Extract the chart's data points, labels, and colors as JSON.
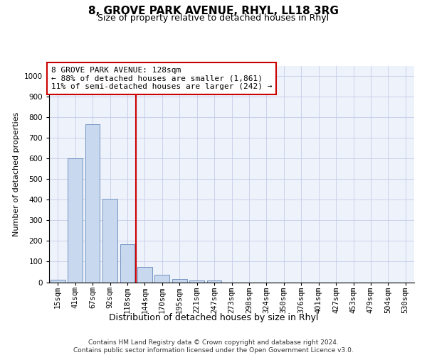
{
  "title1": "8, GROVE PARK AVENUE, RHYL, LL18 3RG",
  "title2": "Size of property relative to detached houses in Rhyl",
  "xlabel": "Distribution of detached houses by size in Rhyl",
  "ylabel": "Number of detached properties",
  "footnote": "Contains HM Land Registry data © Crown copyright and database right 2024.\nContains public sector information licensed under the Open Government Licence v3.0.",
  "categories": [
    "15sqm",
    "41sqm",
    "67sqm",
    "92sqm",
    "118sqm",
    "144sqm",
    "170sqm",
    "195sqm",
    "221sqm",
    "247sqm",
    "273sqm",
    "298sqm",
    "324sqm",
    "350sqm",
    "376sqm",
    "401sqm",
    "427sqm",
    "453sqm",
    "479sqm",
    "504sqm",
    "530sqm"
  ],
  "values": [
    12,
    600,
    765,
    405,
    185,
    75,
    35,
    15,
    10,
    10,
    0,
    0,
    0,
    0,
    0,
    0,
    0,
    0,
    0,
    0,
    0
  ],
  "bar_color": "#c8d8ee",
  "bar_edge_color": "#6688bb",
  "red_line_x": 4.5,
  "red_line_color": "#cc0000",
  "annotation_text": "8 GROVE PARK AVENUE: 128sqm\n← 88% of detached houses are smaller (1,861)\n11% of semi-detached houses are larger (242) →",
  "ylim_max": 1050,
  "yticks": [
    0,
    100,
    200,
    300,
    400,
    500,
    600,
    700,
    800,
    900,
    1000
  ],
  "bg_color": "#eef2fb",
  "grid_color": "#c5cce8",
  "title1_fontsize": 11,
  "title2_fontsize": 9,
  "ylabel_fontsize": 8,
  "xlabel_fontsize": 9,
  "tick_fontsize": 7.5,
  "annot_fontsize": 8,
  "footnote_fontsize": 6.5
}
